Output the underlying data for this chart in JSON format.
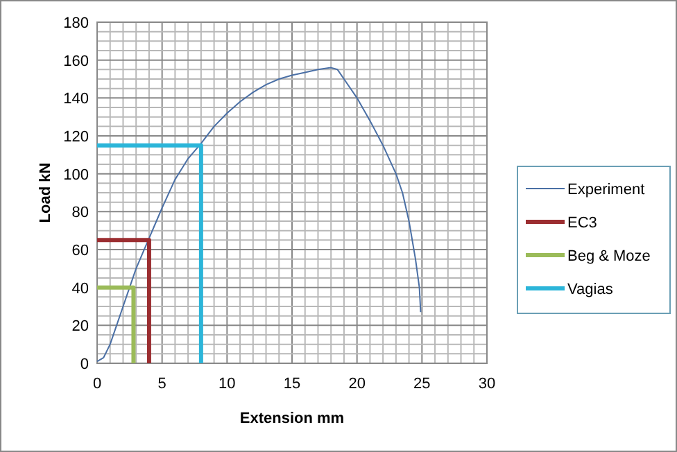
{
  "chart_data": {
    "type": "line",
    "xlabel": "Extension mm",
    "ylabel": "Load kN",
    "xlim": [
      0,
      30
    ],
    "ylim": [
      0,
      180
    ],
    "xticks": [
      0,
      {
        "value": 1,
        "label": null
      },
      {
        "value": 2,
        "label": null
      },
      {
        "value": 3,
        "label": null
      },
      {
        "value": 4,
        "label": null
      },
      5,
      {
        "value": 6,
        "label": null
      },
      {
        "value": 7,
        "label": null
      },
      {
        "value": 8,
        "label": null
      },
      {
        "value": 9,
        "label": null
      },
      10,
      {
        "value": 11,
        "label": null
      },
      {
        "value": 12,
        "label": null
      },
      {
        "value": 13,
        "label": null
      },
      {
        "value": 14,
        "label": null
      },
      15,
      {
        "value": 16,
        "label": null
      },
      {
        "value": 17,
        "label": null
      },
      {
        "value": 18,
        "label": null
      },
      {
        "value": 19,
        "label": null
      },
      20,
      {
        "value": 21,
        "label": null
      },
      {
        "value": 22,
        "label": null
      },
      {
        "value": 23,
        "label": null
      },
      {
        "value": 24,
        "label": null
      },
      25,
      {
        "value": 26,
        "label": null
      },
      {
        "value": 27,
        "label": null
      },
      {
        "value": 28,
        "label": null
      },
      {
        "value": 29,
        "label": null
      },
      30
    ],
    "yticks": [
      0,
      {
        "value": 5,
        "label": null
      },
      {
        "value": 10,
        "label": null
      },
      {
        "value": 15,
        "label": null
      },
      20,
      {
        "value": 25,
        "label": null
      },
      {
        "value": 30,
        "label": null
      },
      {
        "value": 35,
        "label": null
      },
      40,
      {
        "value": 45,
        "label": null
      },
      {
        "value": 50,
        "label": null
      },
      {
        "value": 55,
        "label": null
      },
      60,
      {
        "value": 65,
        "label": null
      },
      {
        "value": 70,
        "label": null
      },
      {
        "value": 75,
        "label": null
      },
      80,
      {
        "value": 85,
        "label": null
      },
      {
        "value": 90,
        "label": null
      },
      {
        "value": 95,
        "label": null
      },
      100,
      {
        "value": 105,
        "label": null
      },
      {
        "value": 110,
        "label": null
      },
      {
        "value": 115,
        "label": null
      },
      120,
      {
        "value": 125,
        "label": null
      },
      {
        "value": 130,
        "label": null
      },
      {
        "value": 135,
        "label": null
      },
      140,
      {
        "value": 145,
        "label": null
      },
      {
        "value": 150,
        "label": null
      },
      {
        "value": 155,
        "label": null
      },
      160,
      {
        "value": 165,
        "label": null
      },
      {
        "value": 170,
        "label": null
      },
      {
        "value": 175,
        "label": null
      },
      180
    ],
    "grid": true,
    "legend": "right",
    "marker": "none",
    "line_style": "solid",
    "series": [
      {
        "name": "Experiment",
        "color": "#4a6fa5",
        "x": [
          0,
          0.5,
          1,
          1.5,
          2,
          2.5,
          3,
          3.5,
          4,
          4.5,
          5,
          6,
          7,
          8,
          9,
          10,
          11,
          12,
          13,
          14,
          15,
          16,
          17,
          18,
          18.5,
          19,
          20,
          21,
          22,
          23,
          23.5,
          24,
          24.5,
          24.8,
          24.9
        ],
        "values": [
          1,
          3,
          10,
          20,
          30,
          40,
          50,
          58,
          66,
          74,
          82,
          97,
          108,
          116,
          125,
          132,
          138,
          143,
          147,
          150,
          152,
          153.5,
          155,
          156,
          155,
          150,
          140,
          128,
          115,
          100,
          90,
          75,
          55,
          40,
          27
        ]
      },
      {
        "name": "EC3",
        "color": "#9b2d30",
        "x": [
          0,
          4,
          4
        ],
        "values": [
          65,
          65,
          0
        ]
      },
      {
        "name": "Beg & Moze",
        "color": "#9bbb59",
        "x": [
          0,
          2.8,
          2.8
        ],
        "values": [
          40,
          40,
          0
        ]
      },
      {
        "name": "Vagias",
        "color": "#2bb5d9",
        "x": [
          0,
          8,
          8
        ],
        "values": [
          115,
          115,
          0
        ]
      }
    ]
  }
}
